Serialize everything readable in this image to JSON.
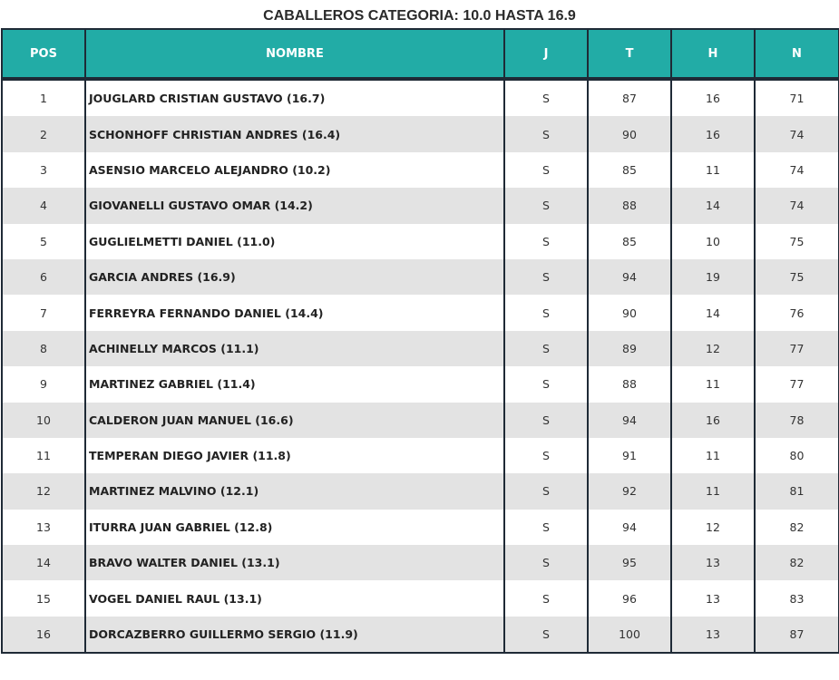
{
  "title": "CABALLEROS CATEGORIA: 10.0 HASTA 16.9",
  "columns": [
    "POS",
    "NOMBRE",
    "J",
    "T",
    "H",
    "N"
  ],
  "colors": {
    "header": "#22aca6",
    "border": "#1f2a36",
    "alt_row": "#e3e3e3"
  },
  "rows": [
    [
      "1",
      "JOUGLARD CRISTIAN GUSTAVO (16.7)",
      "S",
      "87",
      "16",
      "71"
    ],
    [
      "2",
      "SCHONHOFF CHRISTIAN ANDRES (16.4)",
      "S",
      "90",
      "16",
      "74"
    ],
    [
      "3",
      "ASENSIO MARCELO ALEJANDRO (10.2)",
      "S",
      "85",
      "11",
      "74"
    ],
    [
      "4",
      "GIOVANELLI GUSTAVO OMAR (14.2)",
      "S",
      "88",
      "14",
      "74"
    ],
    [
      "5",
      "GUGLIELMETTI DANIEL (11.0)",
      "S",
      "85",
      "10",
      "75"
    ],
    [
      "6",
      "GARCIA ANDRES (16.9)",
      "S",
      "94",
      "19",
      "75"
    ],
    [
      "7",
      "FERREYRA FERNANDO DANIEL (14.4)",
      "S",
      "90",
      "14",
      "76"
    ],
    [
      "8",
      "ACHINELLY MARCOS (11.1)",
      "S",
      "89",
      "12",
      "77"
    ],
    [
      "9",
      "MARTINEZ GABRIEL (11.4)",
      "S",
      "88",
      "11",
      "77"
    ],
    [
      "10",
      "CALDERON JUAN MANUEL (16.6)",
      "S",
      "94",
      "16",
      "78"
    ],
    [
      "11",
      "TEMPERAN DIEGO JAVIER (11.8)",
      "S",
      "91",
      "11",
      "80"
    ],
    [
      "12",
      "MARTINEZ MALVINO (12.1)",
      "S",
      "92",
      "11",
      "81"
    ],
    [
      "13",
      "ITURRA JUAN GABRIEL (12.8)",
      "S",
      "94",
      "12",
      "82"
    ],
    [
      "14",
      "BRAVO WALTER DANIEL (13.1)",
      "S",
      "95",
      "13",
      "82"
    ],
    [
      "15",
      "VOGEL DANIEL RAUL (13.1)",
      "S",
      "96",
      "13",
      "83"
    ],
    [
      "16",
      "DORCAZBERRO GUILLERMO SERGIO (11.9)",
      "S",
      "100",
      "13",
      "87"
    ]
  ]
}
